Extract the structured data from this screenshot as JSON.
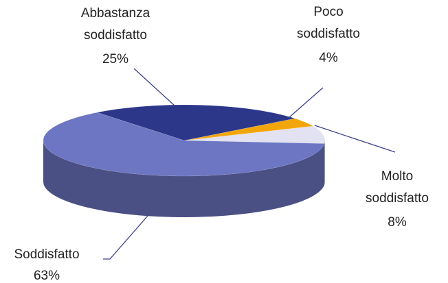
{
  "chart_data": {
    "type": "pie3d",
    "categories": [
      "Abbastanza soddisfatto",
      "Poco soddisfatto",
      "Molto soddisfatto",
      "Soddisfatto"
    ],
    "values": [
      25,
      4,
      8,
      63
    ],
    "value_labels": [
      "25%",
      "4%",
      "8%",
      "63%"
    ],
    "colors": [
      "#2c3789",
      "#f2a60c",
      "#e2e2f2",
      "#6d76c2"
    ]
  }
}
